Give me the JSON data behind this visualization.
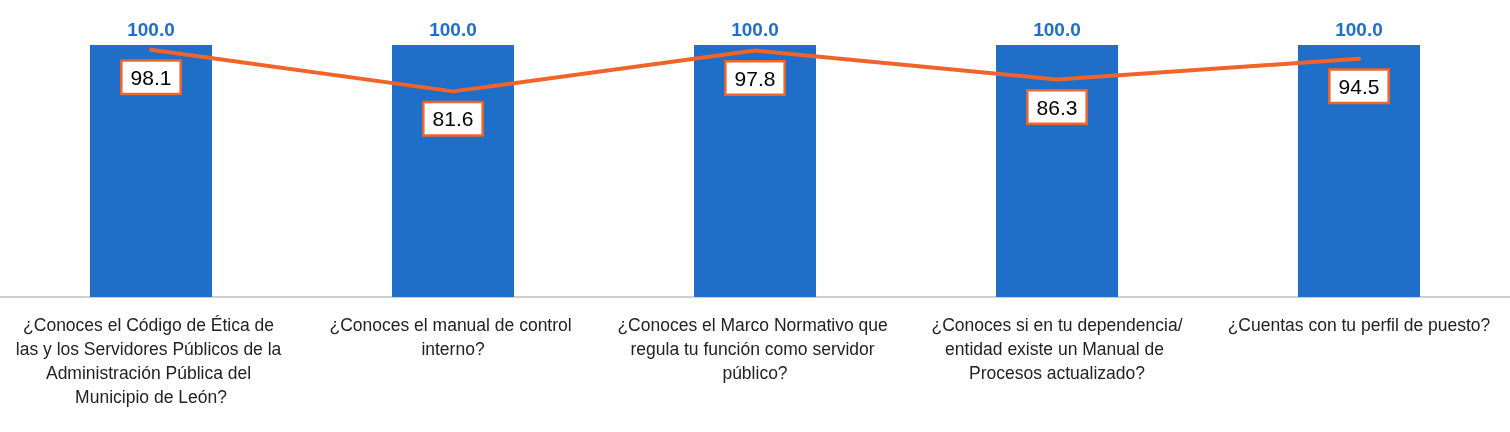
{
  "chart_data": {
    "type": "bar",
    "categories": [
      "¿Conoces el Código de Ética de las y los Servidores Públicos de la Administración Pública del Municipio de León?",
      "¿Conoces el manual de control interno?",
      "¿Conoces el Marco Normativo que regula tu función como servidor público?",
      "¿Conoces si en tu dependencia/entidad existe un Manual de Procesos actualizado?",
      "¿Cuentas con tu perfil de puesto?"
    ],
    "series": [
      {
        "color": "#1f6fc8",
        "values": [
          100,
          100,
          100,
          100,
          100
        ],
        "value_labels": [
          "100.0",
          "100.0",
          "100.0",
          "100.0",
          "100.0"
        ]
      },
      {
        "type": "line",
        "color": "#f0642a",
        "values": [
          98.1,
          81.6,
          97.8,
          86.3,
          94.5
        ],
        "value_labels": [
          "98.1",
          "81.6",
          "97.8",
          "86.3",
          "94.5"
        ]
      }
    ],
    "marker": "none",
    "line_style": "solid",
    "grid": false
  }
}
